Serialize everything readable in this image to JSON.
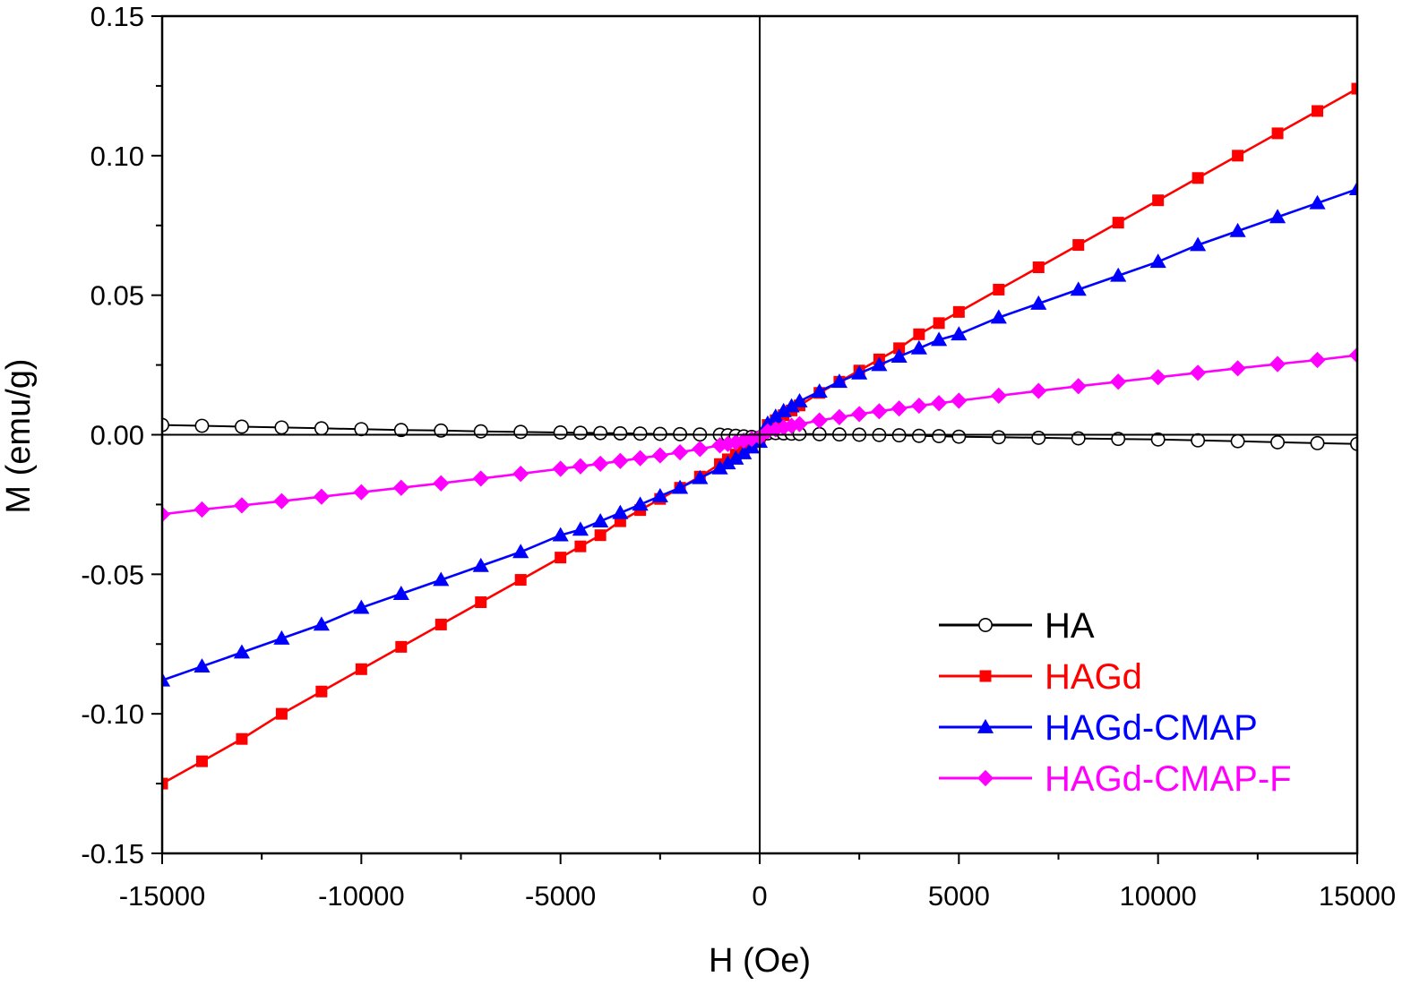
{
  "chart_data": {
    "type": "line",
    "title": "",
    "xlabel": "H (Oe)",
    "ylabel": "M (emu/g)",
    "xlim": [
      -15000,
      15000
    ],
    "ylim": [
      -0.15,
      0.15
    ],
    "x_ticks": [
      "-15000",
      "-10000",
      "-5000",
      "0",
      "5000",
      "10000",
      "15000"
    ],
    "y_ticks": [
      "0.15",
      "0.10",
      "0.05",
      "0.00",
      "-0.05",
      "-0.10",
      "-0.15"
    ],
    "legend_position": "bottom-right",
    "grid": false,
    "series": [
      {
        "name": "HA",
        "color": "#000000",
        "marker": "circle-open",
        "x": [
          -15000,
          -14000,
          -13000,
          -12000,
          -11000,
          -10000,
          -9000,
          -8000,
          -7000,
          -6000,
          -5000,
          -4500,
          -4000,
          -3500,
          -3000,
          -2500,
          -2000,
          -1500,
          -1000,
          -800,
          -600,
          -400,
          -200,
          0,
          200,
          400,
          600,
          800,
          1000,
          1500,
          2000,
          2500,
          3000,
          3500,
          4000,
          4500,
          5000,
          6000,
          7000,
          8000,
          9000,
          10000,
          11000,
          12000,
          13000,
          14000,
          15000
        ],
        "y": [
          0.0035,
          0.0032,
          0.0029,
          0.0026,
          0.0023,
          0.002,
          0.0017,
          0.0015,
          0.0012,
          0.001,
          0.0008,
          0.0007,
          0.0006,
          0.0005,
          0.0004,
          0.0003,
          0.0002,
          0.0001,
          0.0,
          -0.0002,
          -0.0004,
          -0.0006,
          -0.0008,
          -0.001,
          0.0005,
          0.0006,
          0.0005,
          0.0004,
          0.0003,
          0.0002,
          0.0001,
          0.0,
          -0.0001,
          -0.0002,
          -0.0004,
          -0.0005,
          -0.0007,
          -0.0009,
          -0.0011,
          -0.0013,
          -0.0015,
          -0.0017,
          -0.002,
          -0.0023,
          -0.0027,
          -0.003,
          -0.0033
        ]
      },
      {
        "name": "HAGd",
        "color": "#ff0000",
        "marker": "square",
        "x": [
          -15000,
          -14000,
          -13000,
          -12000,
          -11000,
          -10000,
          -9000,
          -8000,
          -7000,
          -6000,
          -5000,
          -4500,
          -4000,
          -3500,
          -3000,
          -2500,
          -2000,
          -1500,
          -1000,
          -800,
          -600,
          -400,
          -200,
          0,
          200,
          400,
          600,
          800,
          1000,
          1500,
          2000,
          2500,
          3000,
          3500,
          4000,
          4500,
          5000,
          6000,
          7000,
          8000,
          9000,
          10000,
          11000,
          12000,
          13000,
          14000,
          15000
        ],
        "y": [
          -0.125,
          -0.117,
          -0.109,
          -0.1,
          -0.092,
          -0.084,
          -0.076,
          -0.068,
          -0.06,
          -0.052,
          -0.044,
          -0.04,
          -0.036,
          -0.031,
          -0.027,
          -0.023,
          -0.019,
          -0.015,
          -0.0105,
          -0.0088,
          -0.0071,
          -0.0054,
          -0.0036,
          -0.002,
          0.0035,
          0.0052,
          0.007,
          0.0087,
          0.0105,
          0.015,
          0.019,
          0.023,
          0.027,
          0.031,
          0.036,
          0.04,
          0.044,
          0.052,
          0.06,
          0.068,
          0.076,
          0.084,
          0.092,
          0.1,
          0.108,
          0.116,
          0.124
        ]
      },
      {
        "name": "HAGd-CMAP",
        "color": "#0000ff",
        "marker": "triangle",
        "x": [
          -15000,
          -14000,
          -13000,
          -12000,
          -11000,
          -10000,
          -9000,
          -8000,
          -7000,
          -6000,
          -5000,
          -4500,
          -4000,
          -3500,
          -3000,
          -2500,
          -2000,
          -1500,
          -1000,
          -800,
          -600,
          -400,
          -200,
          0,
          200,
          400,
          600,
          800,
          1000,
          1500,
          2000,
          2500,
          3000,
          3500,
          4000,
          4500,
          5000,
          6000,
          7000,
          8000,
          9000,
          10000,
          11000,
          12000,
          13000,
          14000,
          15000
        ],
        "y": [
          -0.088,
          -0.083,
          -0.078,
          -0.073,
          -0.068,
          -0.062,
          -0.057,
          -0.052,
          -0.047,
          -0.042,
          -0.036,
          -0.034,
          -0.031,
          -0.028,
          -0.025,
          -0.022,
          -0.019,
          -0.0155,
          -0.012,
          -0.0102,
          -0.0085,
          -0.0066,
          -0.0045,
          -0.0025,
          0.004,
          0.0065,
          0.0085,
          0.0102,
          0.012,
          0.0155,
          0.019,
          0.022,
          0.025,
          0.028,
          0.031,
          0.034,
          0.036,
          0.042,
          0.047,
          0.052,
          0.057,
          0.062,
          0.068,
          0.073,
          0.078,
          0.083,
          0.088
        ]
      },
      {
        "name": "HAGd-CMAP-F",
        "color": "#ff00ff",
        "marker": "diamond",
        "x": [
          -15000,
          -14000,
          -13000,
          -12000,
          -11000,
          -10000,
          -9000,
          -8000,
          -7000,
          -6000,
          -5000,
          -4500,
          -4000,
          -3500,
          -3000,
          -2500,
          -2000,
          -1500,
          -1000,
          -800,
          -600,
          -400,
          -200,
          0,
          200,
          400,
          600,
          800,
          1000,
          1500,
          2000,
          2500,
          3000,
          3500,
          4000,
          4500,
          5000,
          6000,
          7000,
          8000,
          9000,
          10000,
          11000,
          12000,
          13000,
          14000,
          15000
        ],
        "y": [
          -0.0285,
          -0.0268,
          -0.0253,
          -0.0238,
          -0.0222,
          -0.0206,
          -0.019,
          -0.0174,
          -0.0157,
          -0.014,
          -0.0122,
          -0.0113,
          -0.0104,
          -0.0094,
          -0.0084,
          -0.0074,
          -0.0063,
          -0.0051,
          -0.0038,
          -0.0033,
          -0.0027,
          -0.0021,
          -0.0015,
          -0.0008,
          0.0012,
          0.0019,
          0.0026,
          0.0032,
          0.0038,
          0.0051,
          0.0063,
          0.0074,
          0.0084,
          0.0094,
          0.0104,
          0.0113,
          0.0122,
          0.014,
          0.0157,
          0.0174,
          0.019,
          0.0206,
          0.0222,
          0.0238,
          0.0253,
          0.0268,
          0.0285
        ]
      }
    ]
  }
}
